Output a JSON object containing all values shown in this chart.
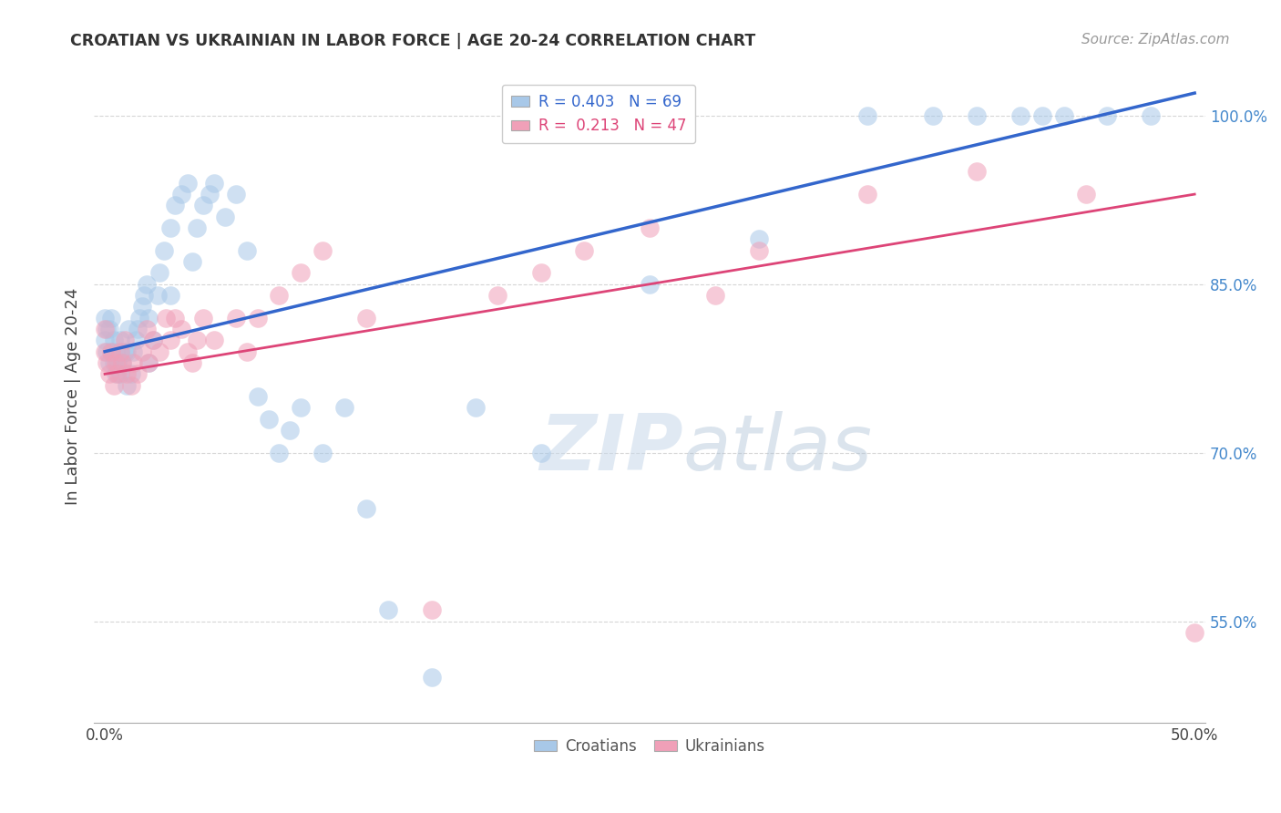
{
  "title": "CROATIAN VS UKRAINIAN IN LABOR FORCE | AGE 20-24 CORRELATION CHART",
  "source": "Source: ZipAtlas.com",
  "ylabel": "In Labor Force | Age 20-24",
  "blue_color": "#a8c8e8",
  "pink_color": "#f0a0b8",
  "blue_line_color": "#3366cc",
  "pink_line_color": "#dd4477",
  "background_color": "#ffffff",
  "grid_color": "#cccccc",
  "xlim": [
    -0.005,
    0.505
  ],
  "ylim": [
    0.46,
    1.04
  ],
  "x_ticks": [
    0.0,
    0.1,
    0.2,
    0.3,
    0.4,
    0.5
  ],
  "y_tick_vals": [
    0.55,
    0.7,
    0.85,
    1.0
  ],
  "y_tick_labels": [
    "55.0%",
    "70.0%",
    "85.0%",
    "100.0%"
  ],
  "blue_line_x0": 0.0,
  "blue_line_y0": 0.79,
  "blue_line_x1": 0.5,
  "blue_line_y1": 1.02,
  "pink_line_x0": 0.0,
  "pink_line_y0": 0.77,
  "pink_line_x1": 0.5,
  "pink_line_y1": 0.93,
  "blue_x": [
    0.0,
    0.0,
    0.001,
    0.001,
    0.002,
    0.002,
    0.003,
    0.003,
    0.004,
    0.004,
    0.005,
    0.005,
    0.006,
    0.007,
    0.007,
    0.008,
    0.009,
    0.01,
    0.01,
    0.011,
    0.012,
    0.013,
    0.014,
    0.015,
    0.016,
    0.017,
    0.018,
    0.019,
    0.02,
    0.02,
    0.022,
    0.024,
    0.025,
    0.027,
    0.03,
    0.03,
    0.032,
    0.035,
    0.038,
    0.04,
    0.042,
    0.045,
    0.048,
    0.05,
    0.055,
    0.06,
    0.065,
    0.07,
    0.075,
    0.08,
    0.085,
    0.09,
    0.1,
    0.11,
    0.12,
    0.13,
    0.15,
    0.17,
    0.2,
    0.25,
    0.3,
    0.35,
    0.38,
    0.4,
    0.42,
    0.43,
    0.44,
    0.46,
    0.48
  ],
  "blue_y": [
    0.8,
    0.82,
    0.79,
    0.81,
    0.78,
    0.81,
    0.79,
    0.82,
    0.78,
    0.8,
    0.77,
    0.79,
    0.78,
    0.77,
    0.8,
    0.78,
    0.79,
    0.76,
    0.79,
    0.81,
    0.77,
    0.79,
    0.8,
    0.81,
    0.82,
    0.83,
    0.84,
    0.85,
    0.78,
    0.82,
    0.8,
    0.84,
    0.86,
    0.88,
    0.84,
    0.9,
    0.92,
    0.93,
    0.94,
    0.87,
    0.9,
    0.92,
    0.93,
    0.94,
    0.91,
    0.93,
    0.88,
    0.75,
    0.73,
    0.7,
    0.72,
    0.74,
    0.7,
    0.74,
    0.65,
    0.56,
    0.5,
    0.74,
    0.7,
    0.85,
    0.89,
    1.0,
    1.0,
    1.0,
    1.0,
    1.0,
    1.0,
    1.0,
    1.0
  ],
  "pink_x": [
    0.0,
    0.0,
    0.001,
    0.002,
    0.003,
    0.004,
    0.005,
    0.006,
    0.007,
    0.008,
    0.009,
    0.01,
    0.012,
    0.013,
    0.015,
    0.017,
    0.019,
    0.02,
    0.022,
    0.025,
    0.028,
    0.03,
    0.032,
    0.035,
    0.038,
    0.04,
    0.042,
    0.045,
    0.05,
    0.06,
    0.065,
    0.07,
    0.08,
    0.09,
    0.1,
    0.12,
    0.15,
    0.18,
    0.2,
    0.22,
    0.25,
    0.28,
    0.3,
    0.35,
    0.4,
    0.45,
    0.5
  ],
  "pink_y": [
    0.79,
    0.81,
    0.78,
    0.77,
    0.79,
    0.76,
    0.78,
    0.77,
    0.79,
    0.78,
    0.8,
    0.77,
    0.76,
    0.78,
    0.77,
    0.79,
    0.81,
    0.78,
    0.8,
    0.79,
    0.82,
    0.8,
    0.82,
    0.81,
    0.79,
    0.78,
    0.8,
    0.82,
    0.8,
    0.82,
    0.79,
    0.82,
    0.84,
    0.86,
    0.88,
    0.82,
    0.56,
    0.84,
    0.86,
    0.88,
    0.9,
    0.84,
    0.88,
    0.93,
    0.95,
    0.93,
    0.54
  ],
  "watermark_zip_color": "#c8d8e8",
  "watermark_atlas_color": "#b0c8d8"
}
